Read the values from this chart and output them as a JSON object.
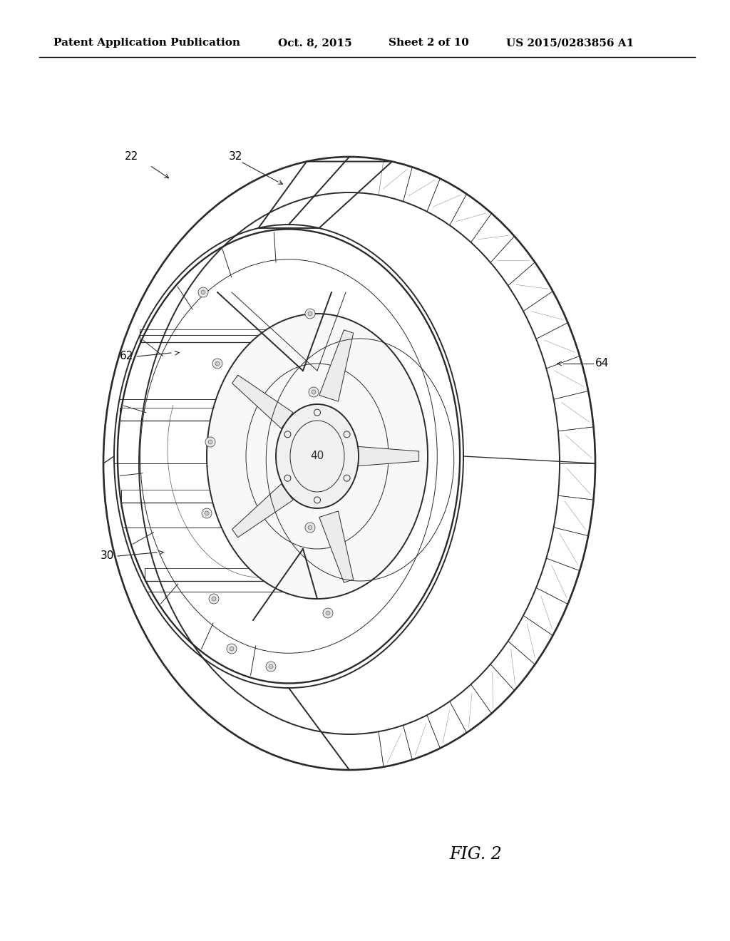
{
  "background_color": "#ffffff",
  "header_text": "Patent Application Publication",
  "header_date": "Oct. 8, 2015",
  "header_sheet": "Sheet 2 of 10",
  "header_patent": "US 2015/0283856 A1",
  "figure_label": "FIG. 2",
  "line_color": "#2a2a2a",
  "lw_main": 1.4,
  "lw_thin": 0.7,
  "lw_vt": 0.4
}
